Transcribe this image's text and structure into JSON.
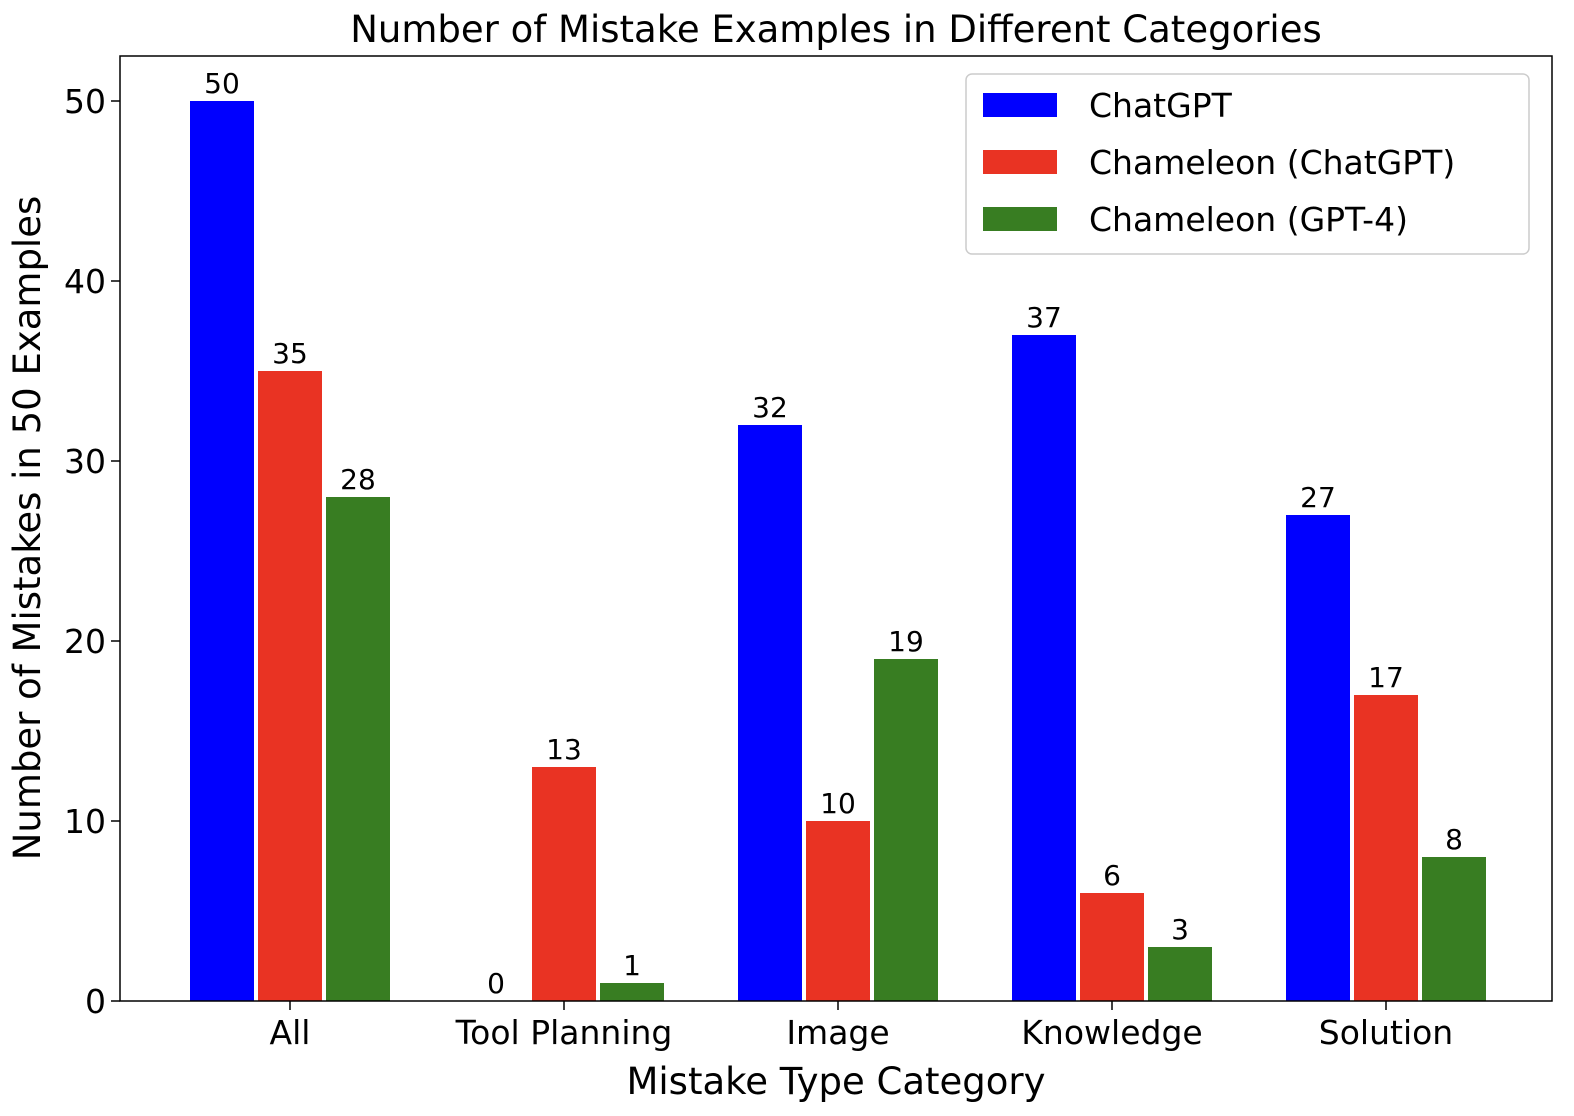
{
  "chart_data": {
    "type": "bar",
    "title": "Number of Mistake Examples in Different Categories",
    "xlabel": "Mistake Type Category",
    "ylabel": "Number of Mistakes in 50 Examples",
    "categories": [
      "All",
      "Tool Planning",
      "Image",
      "Knowledge",
      "Solution"
    ],
    "series": [
      {
        "name": "ChatGPT",
        "color": "#0000ff",
        "values": [
          50,
          0,
          32,
          37,
          27
        ]
      },
      {
        "name": "Chameleon (ChatGPT)",
        "color": "#e93323",
        "values": [
          35,
          13,
          10,
          6,
          17
        ]
      },
      {
        "name": "Chameleon (GPT-4)",
        "color": "#387d22",
        "values": [
          28,
          1,
          19,
          3,
          8
        ]
      }
    ],
    "ylim": [
      0,
      52.5
    ],
    "yticks": [
      0,
      10,
      20,
      30,
      40,
      50
    ],
    "grid": false,
    "legend": "top-right"
  }
}
